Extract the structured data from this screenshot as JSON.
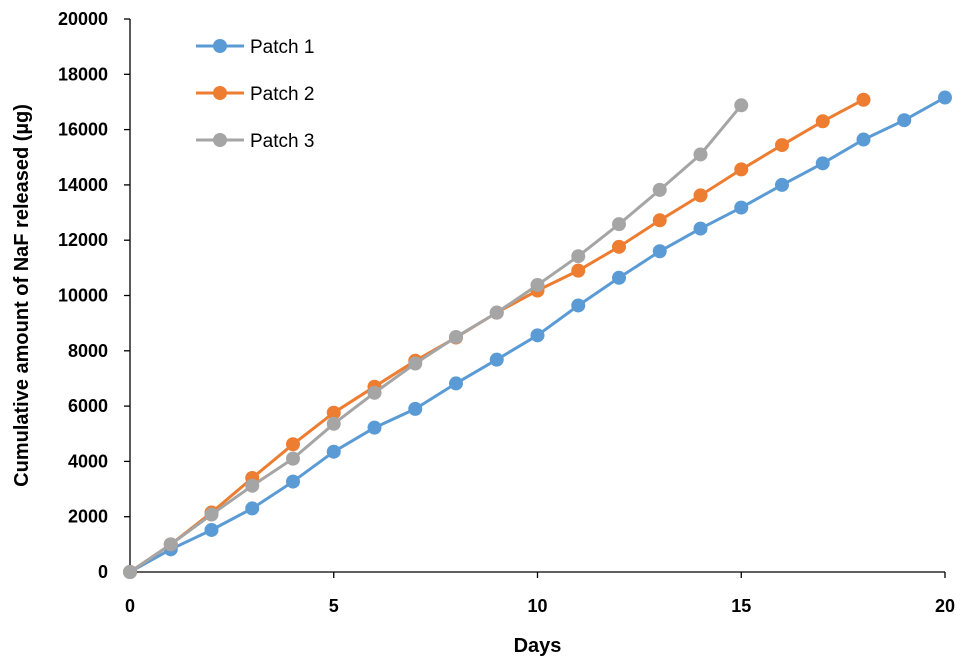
{
  "chart_data": {
    "type": "line",
    "title": "",
    "xlabel": "Days",
    "ylabel": "Cumulative amount of NaF released (µg)",
    "xlim": [
      0,
      20
    ],
    "ylim": [
      0,
      20000
    ],
    "xticks": [
      0,
      5,
      10,
      15,
      20
    ],
    "yticks": [
      0,
      2000,
      4000,
      6000,
      8000,
      10000,
      12000,
      14000,
      16000,
      18000,
      20000
    ],
    "grid": false,
    "legend_position": "top-left",
    "series": [
      {
        "name": "Patch 1",
        "color": "#5B9BD5",
        "x": [
          0,
          1,
          2,
          3,
          4,
          5,
          6,
          7,
          8,
          9,
          10,
          11,
          12,
          13,
          14,
          15,
          16,
          17,
          18,
          19,
          20
        ],
        "y": [
          0,
          820,
          1520,
          2300,
          3270,
          4350,
          5220,
          5900,
          6820,
          7680,
          8560,
          9640,
          10640,
          11600,
          12420,
          13180,
          14000,
          14780,
          15640,
          16340,
          17160
        ]
      },
      {
        "name": "Patch 2",
        "color": "#ED7D31",
        "x": [
          0,
          1,
          2,
          3,
          4,
          5,
          6,
          7,
          8,
          9,
          10,
          11,
          12,
          13,
          14,
          15,
          16,
          17,
          18
        ],
        "y": [
          0,
          1000,
          2150,
          3400,
          4620,
          5760,
          6700,
          7640,
          8480,
          9380,
          10180,
          10900,
          11760,
          12720,
          13620,
          14560,
          15440,
          16300,
          17080
        ]
      },
      {
        "name": "Patch 3",
        "color": "#A5A5A5",
        "x": [
          0,
          1,
          2,
          3,
          4,
          5,
          6,
          7,
          8,
          9,
          10,
          11,
          12,
          13,
          14,
          15
        ],
        "y": [
          0,
          1000,
          2080,
          3120,
          4100,
          5360,
          6480,
          7540,
          8500,
          9380,
          10380,
          11420,
          12580,
          13820,
          15100,
          16880
        ]
      }
    ]
  }
}
